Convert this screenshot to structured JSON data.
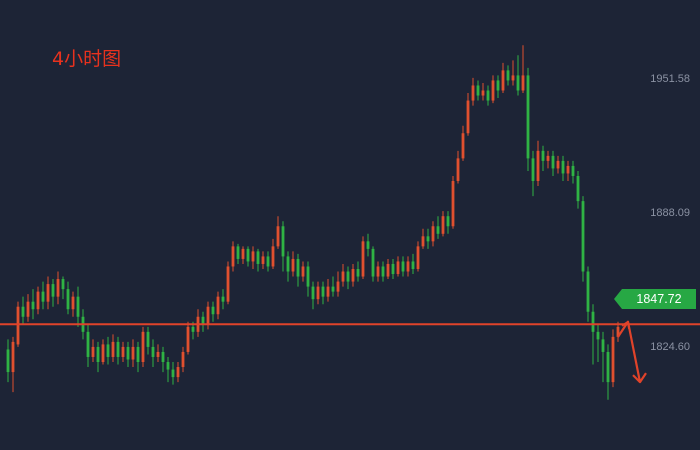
{
  "chart_title": "4小时图",
  "colors": {
    "background": "#1d2436",
    "up": "#e0502f",
    "down": "#2fb344",
    "level_line": "#e0432a",
    "tag": "#27a844",
    "axis_text": "#8b92a3"
  },
  "current_price": "1847.72",
  "chart_data": {
    "type": "candlestick",
    "title": "4小时图",
    "y_axis_labels": [
      "1951.58",
      "1888.09",
      "1824.60"
    ],
    "ylim": [
      1799.0,
      1978.0
    ],
    "horizontal_line": 1849.0,
    "candles": [
      [
        1839,
        1830,
        1843,
        1826
      ],
      [
        1830,
        1842,
        1844,
        1822
      ],
      [
        1841,
        1856,
        1858,
        1840
      ],
      [
        1856,
        1852,
        1860,
        1849
      ],
      [
        1852,
        1858,
        1861,
        1850
      ],
      [
        1858,
        1855,
        1863,
        1851
      ],
      [
        1855,
        1862,
        1864,
        1853
      ],
      [
        1862,
        1858,
        1866,
        1855
      ],
      [
        1858,
        1865,
        1868,
        1855
      ],
      [
        1865,
        1860,
        1867,
        1856
      ],
      [
        1860,
        1867,
        1870,
        1857
      ],
      [
        1867,
        1863,
        1868,
        1859
      ],
      [
        1863,
        1855,
        1866,
        1853
      ],
      [
        1855,
        1860,
        1862,
        1852
      ],
      [
        1860,
        1852,
        1864,
        1848
      ],
      [
        1852,
        1846,
        1855,
        1843
      ],
      [
        1846,
        1836,
        1849,
        1832
      ],
      [
        1836,
        1840,
        1843,
        1834
      ],
      [
        1840,
        1834,
        1842,
        1830
      ],
      [
        1834,
        1841,
        1843,
        1833
      ],
      [
        1841,
        1836,
        1844,
        1833
      ],
      [
        1836,
        1842,
        1845,
        1834
      ],
      [
        1842,
        1836,
        1844,
        1833
      ],
      [
        1836,
        1840,
        1842,
        1834
      ],
      [
        1840,
        1835,
        1842,
        1832
      ],
      [
        1835,
        1840,
        1843,
        1832
      ],
      [
        1840,
        1834,
        1842,
        1830
      ],
      [
        1834,
        1846,
        1848,
        1832
      ],
      [
        1846,
        1840,
        1848,
        1837
      ],
      [
        1840,
        1836,
        1843,
        1832
      ],
      [
        1836,
        1838,
        1841,
        1834
      ],
      [
        1838,
        1834,
        1840,
        1830
      ],
      [
        1834,
        1831,
        1836,
        1826
      ],
      [
        1831,
        1828,
        1834,
        1825
      ],
      [
        1828,
        1832,
        1834,
        1826
      ],
      [
        1832,
        1838,
        1840,
        1830
      ],
      [
        1838,
        1848,
        1850,
        1837
      ],
      [
        1848,
        1846,
        1850,
        1843
      ],
      [
        1846,
        1852,
        1855,
        1844
      ],
      [
        1852,
        1849,
        1854,
        1846
      ],
      [
        1849,
        1856,
        1858,
        1847
      ],
      [
        1856,
        1853,
        1858,
        1850
      ],
      [
        1853,
        1860,
        1862,
        1851
      ],
      [
        1860,
        1858,
        1863,
        1855
      ],
      [
        1858,
        1872,
        1874,
        1857
      ],
      [
        1872,
        1880,
        1882,
        1870
      ],
      [
        1880,
        1875,
        1881,
        1873
      ],
      [
        1875,
        1879,
        1880,
        1873
      ],
      [
        1879,
        1874,
        1880,
        1872
      ],
      [
        1874,
        1878,
        1880,
        1871
      ],
      [
        1878,
        1873,
        1879,
        1870
      ],
      [
        1873,
        1876,
        1878,
        1871
      ],
      [
        1876,
        1872,
        1878,
        1870
      ],
      [
        1872,
        1880,
        1883,
        1871
      ],
      [
        1880,
        1888,
        1892,
        1879
      ],
      [
        1888,
        1876,
        1890,
        1870
      ],
      [
        1876,
        1870,
        1878,
        1866
      ],
      [
        1870,
        1875,
        1878,
        1868
      ],
      [
        1875,
        1868,
        1877,
        1864
      ],
      [
        1868,
        1872,
        1874,
        1866
      ],
      [
        1872,
        1864,
        1874,
        1860
      ],
      [
        1864,
        1859,
        1866,
        1855
      ],
      [
        1859,
        1864,
        1866,
        1857
      ],
      [
        1864,
        1860,
        1866,
        1857
      ],
      [
        1860,
        1864,
        1867,
        1858
      ],
      [
        1864,
        1862,
        1868,
        1860
      ],
      [
        1862,
        1866,
        1870,
        1860
      ],
      [
        1866,
        1870,
        1873,
        1864
      ],
      [
        1870,
        1866,
        1872,
        1863
      ],
      [
        1866,
        1871,
        1873,
        1864
      ],
      [
        1871,
        1868,
        1874,
        1866
      ],
      [
        1868,
        1882,
        1884,
        1867
      ],
      [
        1882,
        1879,
        1885,
        1876
      ],
      [
        1879,
        1868,
        1880,
        1866
      ],
      [
        1868,
        1872,
        1874,
        1866
      ],
      [
        1872,
        1868,
        1874,
        1866
      ],
      [
        1868,
        1873,
        1875,
        1867
      ],
      [
        1873,
        1869,
        1875,
        1867
      ],
      [
        1869,
        1874,
        1876,
        1868
      ],
      [
        1874,
        1870,
        1876,
        1868
      ],
      [
        1870,
        1874,
        1876,
        1868
      ],
      [
        1874,
        1871,
        1877,
        1869
      ],
      [
        1871,
        1880,
        1882,
        1870
      ],
      [
        1880,
        1884,
        1887,
        1879
      ],
      [
        1884,
        1882,
        1887,
        1879
      ],
      [
        1882,
        1888,
        1890,
        1880
      ],
      [
        1888,
        1885,
        1892,
        1883
      ],
      [
        1885,
        1892,
        1894,
        1884
      ],
      [
        1892,
        1888,
        1894,
        1885
      ],
      [
        1888,
        1906,
        1908,
        1887
      ],
      [
        1906,
        1915,
        1918,
        1905
      ],
      [
        1915,
        1925,
        1928,
        1914
      ],
      [
        1925,
        1938,
        1941,
        1924
      ],
      [
        1938,
        1944,
        1947,
        1936
      ],
      [
        1944,
        1940,
        1946,
        1938
      ],
      [
        1940,
        1942,
        1945,
        1938
      ],
      [
        1942,
        1938,
        1944,
        1936
      ],
      [
        1938,
        1946,
        1948,
        1937
      ],
      [
        1946,
        1942,
        1948,
        1939
      ],
      [
        1942,
        1950,
        1953,
        1941
      ],
      [
        1950,
        1946,
        1952,
        1944
      ],
      [
        1946,
        1948,
        1954,
        1944
      ],
      [
        1948,
        1942,
        1956,
        1940
      ],
      [
        1942,
        1948,
        1960,
        1941
      ],
      [
        1948,
        1915,
        1951,
        1910
      ],
      [
        1915,
        1906,
        1918,
        1900
      ],
      [
        1906,
        1918,
        1922,
        1904
      ],
      [
        1918,
        1914,
        1920,
        1910
      ],
      [
        1914,
        1916,
        1918,
        1911
      ],
      [
        1916,
        1911,
        1918,
        1908
      ],
      [
        1911,
        1914,
        1916,
        1909
      ],
      [
        1914,
        1909,
        1916,
        1906
      ],
      [
        1909,
        1912,
        1914,
        1906
      ],
      [
        1912,
        1908,
        1914,
        1905
      ],
      [
        1908,
        1898,
        1910,
        1895
      ],
      [
        1898,
        1870,
        1900,
        1866
      ],
      [
        1870,
        1854,
        1872,
        1850
      ],
      [
        1854,
        1846,
        1857,
        1833
      ],
      [
        1846,
        1843,
        1849,
        1834
      ],
      [
        1843,
        1838,
        1846,
        1826
      ],
      [
        1838,
        1826,
        1841,
        1819
      ],
      [
        1826,
        1844,
        1847,
        1824
      ],
      [
        1844,
        1848,
        1850,
        1842
      ]
    ]
  }
}
